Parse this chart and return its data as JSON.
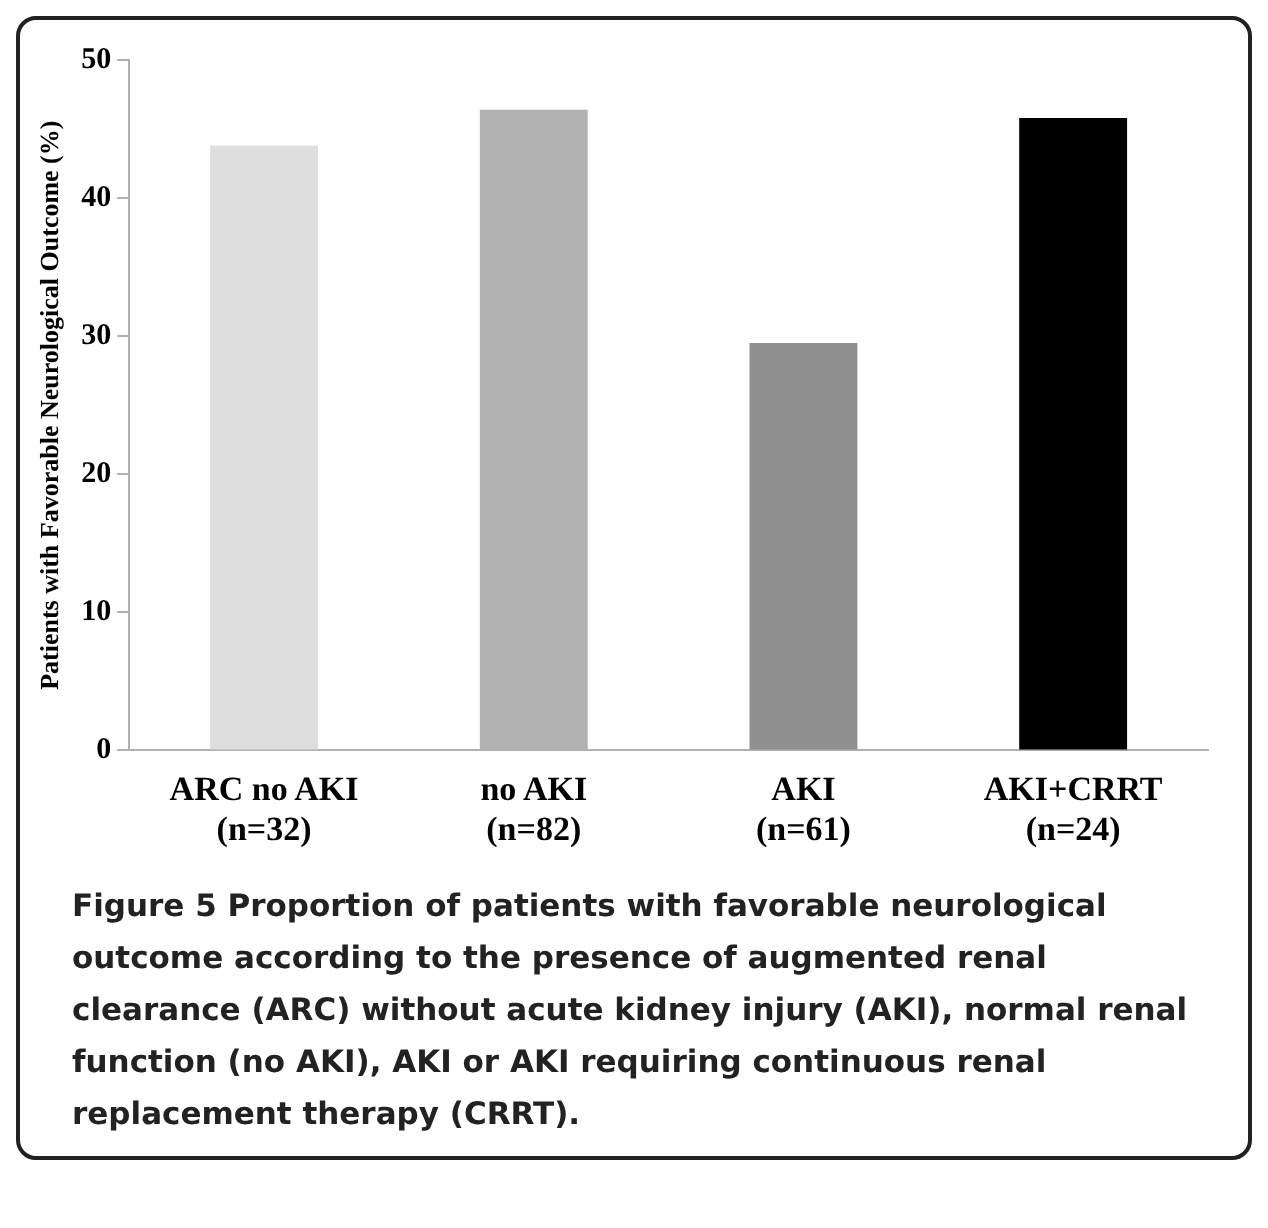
{
  "chart_data": {
    "type": "bar",
    "ylabel": "Patients with Favorable Neurological Outcome (%)",
    "categories": [
      "ARC no AKI\n(n=32)",
      "no AKI\n(n=82)",
      "AKI\n(n=61)",
      "AKI+CRRT\n(n=24)"
    ],
    "values": [
      43.8,
      46.4,
      29.5,
      45.8
    ],
    "colors": [
      "#dedede",
      "#b1b1b1",
      "#8f8f8f",
      "#000000"
    ],
    "ylim": [
      0,
      50
    ],
    "yticks": [
      0,
      10,
      20,
      30,
      40,
      50
    ],
    "grid": false,
    "legend": false,
    "annotations": [
      "Figure 5 Proportion of patients with favorable neurological outcome according to the presence of augmented renal clearance (ARC) without acute kidney injury (AKI), normal renal function (no AKI), AKI or AKI requiring continuous renal replacement therapy (CRRT)."
    ]
  }
}
